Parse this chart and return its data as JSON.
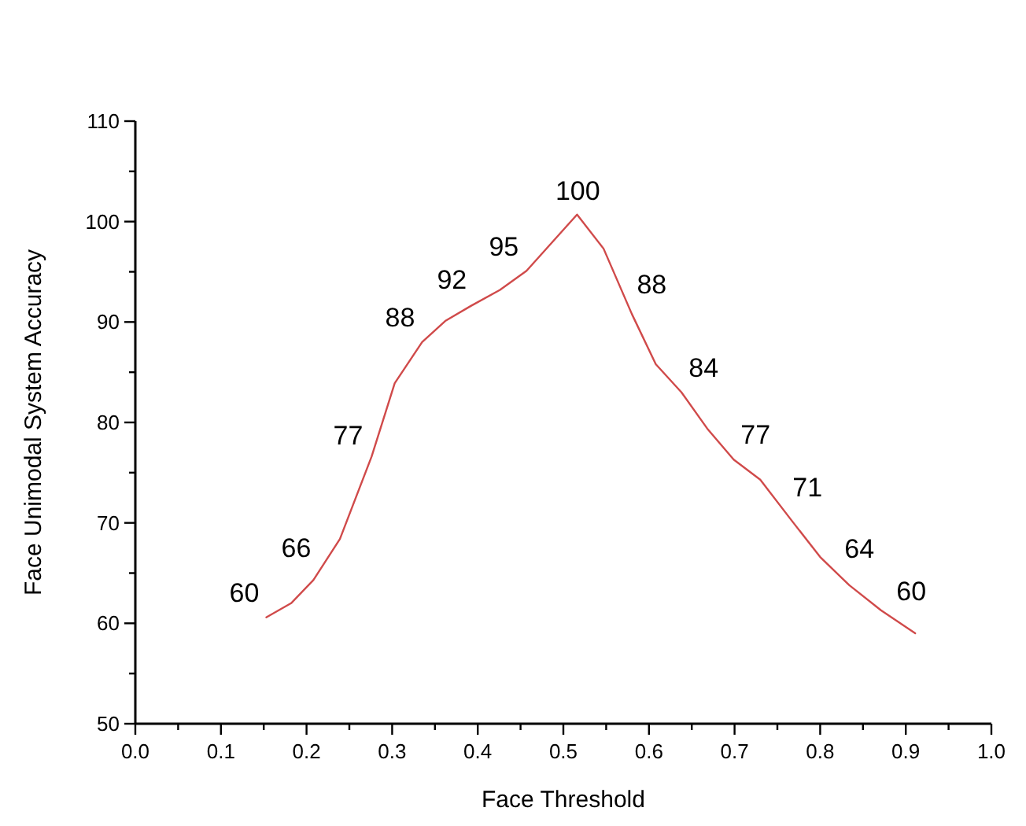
{
  "chart_data": {
    "type": "line",
    "xlabel": "Face Threshold",
    "ylabel": "Face Unimodal System Accuracy",
    "xlim": [
      0,
      1
    ],
    "ylim": [
      50,
      110
    ],
    "xticks": [
      {
        "value": 0,
        "label": "0.0"
      },
      {
        "value": 0.05,
        "label": null
      },
      {
        "value": 0.1,
        "label": "0.1"
      },
      {
        "value": 0.15,
        "label": null
      },
      {
        "value": 0.2,
        "label": "0.2"
      },
      {
        "value": 0.25,
        "label": null
      },
      {
        "value": 0.3,
        "label": "0.3"
      },
      {
        "value": 0.35,
        "label": null
      },
      {
        "value": 0.4,
        "label": "0.4"
      },
      {
        "value": 0.45,
        "label": null
      },
      {
        "value": 0.5,
        "label": "0.5"
      },
      {
        "value": 0.55,
        "label": null
      },
      {
        "value": 0.6,
        "label": "0.6"
      },
      {
        "value": 0.65,
        "label": null
      },
      {
        "value": 0.7,
        "label": "0.7"
      },
      {
        "value": 0.75,
        "label": null
      },
      {
        "value": 0.8,
        "label": "0.8"
      },
      {
        "value": 0.85,
        "label": null
      },
      {
        "value": 0.9,
        "label": "0.9"
      },
      {
        "value": 0.95,
        "label": null
      },
      {
        "value": 1,
        "label": "1.0"
      }
    ],
    "yticks": [
      50,
      {
        "value": 55,
        "label": null
      },
      60,
      {
        "value": 65,
        "label": null
      },
      70,
      {
        "value": 75,
        "label": null
      },
      80,
      {
        "value": 85,
        "label": null
      },
      90,
      {
        "value": 95,
        "label": null
      },
      100,
      {
        "value": 105,
        "label": null
      },
      110
    ],
    "grid": false,
    "marker": "none",
    "line_style": "solid",
    "series": [
      {
        "color": "#d04a4a",
        "x": [
          0.153,
          0.182,
          0.208,
          0.239,
          0.276,
          0.303,
          0.335,
          0.362,
          0.392,
          0.426,
          0.457,
          0.516,
          0.547,
          0.58,
          0.608,
          0.638,
          0.668,
          0.699,
          0.73,
          0.767,
          0.8,
          0.834,
          0.871,
          0.911
        ],
        "values": [
          60.6,
          62.0,
          64.3,
          68.4,
          76.6,
          83.9,
          88.0,
          90.1,
          91.6,
          93.2,
          95.1,
          100.7,
          97.3,
          90.8,
          85.8,
          83.0,
          79.4,
          76.3,
          74.3,
          70.2,
          66.6,
          63.8,
          61.3,
          59.0
        ]
      }
    ],
    "annotations": [
      "60",
      "66",
      "77",
      "88",
      "92",
      "95",
      "100",
      "88",
      "84",
      "77",
      "71",
      "64",
      "60"
    ]
  }
}
